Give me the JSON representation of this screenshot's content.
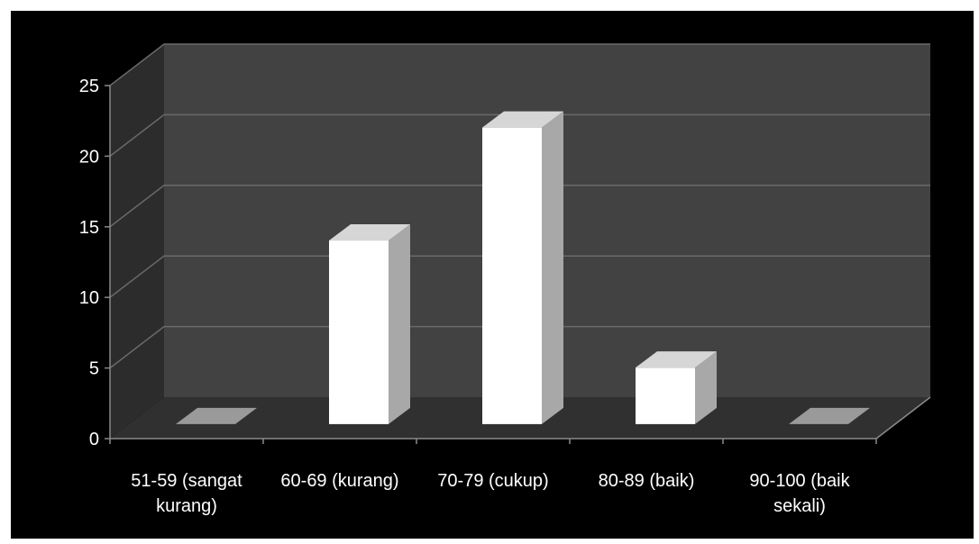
{
  "chart_data": {
    "type": "bar",
    "style": "3d-column",
    "categories": [
      [
        "51-59 (sangat",
        "kurang)"
      ],
      [
        "60-69 (kurang)"
      ],
      [
        "70-79 (cukup)"
      ],
      [
        "80-89 (baik)"
      ],
      [
        "90-100 (baik",
        "sekali)"
      ]
    ],
    "values": [
      0,
      13,
      21,
      4,
      0
    ],
    "yticks": [
      "0",
      "5",
      "10",
      "15",
      "20",
      "25"
    ],
    "ylim": [
      0,
      25
    ],
    "grid": true,
    "colors": {
      "background": "#000000",
      "back_wall": "#424242",
      "side_wall": "#2c2c2c",
      "floor": "#303030",
      "gridline": "#6a6a6a",
      "bar_front": "#ffffff",
      "bar_side": "#a8a8a8",
      "bar_top": "#d6d6d6",
      "text": "#ffffff"
    }
  }
}
